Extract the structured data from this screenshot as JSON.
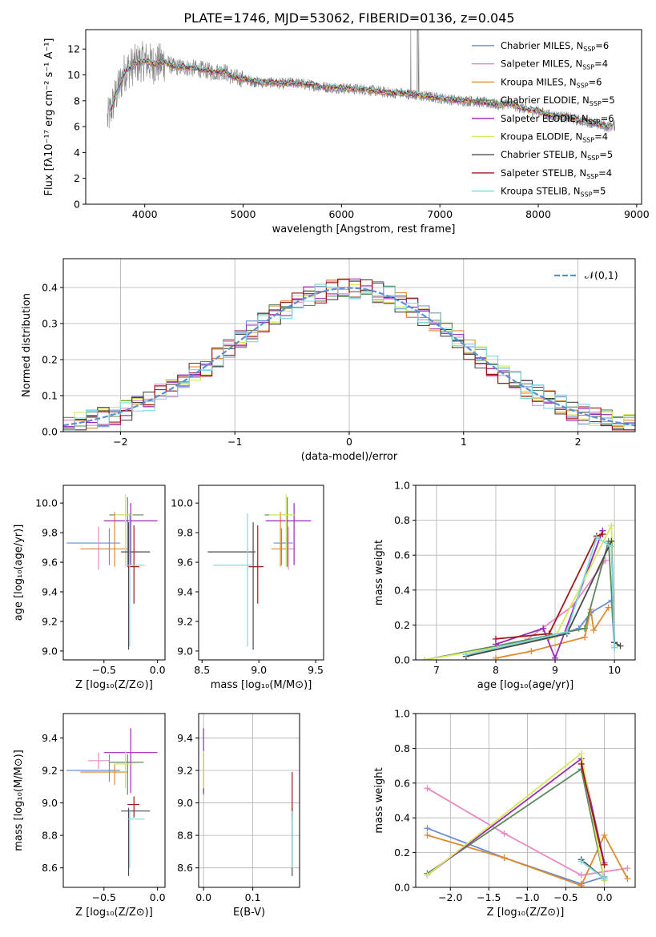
{
  "chart_data": [
    {
      "type": "line",
      "title": "PLATE=1746, MJD=53062, FIBERID=0136, z=0.045",
      "xlabel": "wavelength [Angstrom, rest frame]",
      "ylabel": "Flux [fλ10⁻¹⁷ erg cm⁻² s⁻¹ A⁻¹]",
      "xlim": [
        3400,
        9050
      ],
      "ylim": [
        0,
        13.5
      ],
      "xticks": [
        4000,
        5000,
        6000,
        7000,
        8000,
        9000
      ],
      "yticks": [
        0,
        2,
        4,
        6,
        8,
        10,
        12
      ],
      "grid": false,
      "legend_position": "top-right",
      "data_spectrum": {
        "x": [
          3620,
          3700,
          3800,
          3900,
          4000,
          4100,
          4200,
          4300,
          4400,
          4500,
          4600,
          4700,
          4800,
          4900,
          5000,
          5100,
          5200,
          5300,
          5400,
          5500,
          5600,
          5700,
          5800,
          5900,
          6000,
          6100,
          6200,
          6300,
          6400,
          6500,
          6600,
          6700,
          6800,
          6900,
          7000,
          7100,
          7200,
          7300,
          7400,
          7500,
          7600,
          7700,
          7800,
          7900,
          8000,
          8100,
          8200,
          8300,
          8400,
          8500,
          8600,
          8700,
          8780
        ],
        "y": [
          6.5,
          8.3,
          10.3,
          10.8,
          11.1,
          10.8,
          11.0,
          10.6,
          10.6,
          10.5,
          10.4,
          10.2,
          10.3,
          9.8,
          9.7,
          9.5,
          9.4,
          9.4,
          9.3,
          9.4,
          9.3,
          9.2,
          9.1,
          9.0,
          9.0,
          8.9,
          8.9,
          8.8,
          8.7,
          8.6,
          8.6,
          8.5,
          8.4,
          8.3,
          8.2,
          8.1,
          8.0,
          8.0,
          7.9,
          7.8,
          7.7,
          7.8,
          7.5,
          7.3,
          7.2,
          6.9,
          6.8,
          6.7,
          6.5,
          6.4,
          6.2,
          6.0,
          6.1
        ]
      },
      "series": [
        {
          "name": "Chabrier MILES, N_SSP=6",
          "name_display": "Chabrier MILES, N",
          "name_sub": "SSP",
          "name_tail": "=6",
          "color": "#6a8fd0"
        },
        {
          "name": "Salpeter MILES, N_SSP=4",
          "name_display": "Salpeter MILES, N",
          "name_sub": "SSP",
          "name_tail": "=4",
          "color": "#e78ac3"
        },
        {
          "name": "Kroupa MILES, N_SSP=6",
          "name_display": "Kroupa MILES, N",
          "name_sub": "SSP",
          "name_tail": "=6",
          "color": "#e08a2e"
        },
        {
          "name": "Chabrier ELODIE, N_SSP=5",
          "name_display": "Chabrier ELODIE, N",
          "name_sub": "SSP",
          "name_tail": "=5",
          "color": "#5d8a5d"
        },
        {
          "name": "Salpeter ELODIE, N_SSP=6",
          "name_display": "Salpeter ELODIE, N",
          "name_sub": "SSP",
          "name_tail": "=6",
          "color": "#9a2ab5"
        },
        {
          "name": "Kroupa ELODIE, N_SSP=4",
          "name_display": "Kroupa ELODIE, N",
          "name_sub": "SSP",
          "name_tail": "=4",
          "color": "#d7e85a"
        },
        {
          "name": "Chabrier STELIB, N_SSP=5",
          "name_display": "Chabrier STELIB, N",
          "name_sub": "SSP",
          "name_tail": "=5",
          "color": "#4a4a4a"
        },
        {
          "name": "Salpeter STELIB, N_SSP=4",
          "name_display": "Salpeter STELIB, N",
          "name_sub": "SSP",
          "name_tail": "=4",
          "color": "#a01818"
        },
        {
          "name": "Kroupa STELIB, N_SSP=5",
          "name_display": "Kroupa STELIB, N",
          "name_sub": "SSP",
          "name_tail": "=5",
          "color": "#7fd8e0"
        }
      ]
    },
    {
      "type": "line",
      "xlabel": "(data-model)/error",
      "ylabel": "Normed distribution",
      "xlim": [
        -2.5,
        2.5
      ],
      "ylim": [
        0,
        0.48
      ],
      "xticks": [
        -2,
        -1,
        0,
        1,
        2
      ],
      "yticks": [
        0.0,
        0.1,
        0.2,
        0.3,
        0.4
      ],
      "grid": true,
      "legend_position": "top-right",
      "reference_curve": {
        "name": "𝒩(0,1)",
        "color": "#5b8fd6",
        "style": "dashed"
      },
      "histogram_bin_width": 0.1,
      "histogram_x_range": [
        -2.5,
        2.5
      ]
    },
    {
      "type": "scatter",
      "xlabel": "Z [log₁₀(Z/Z⊙)]",
      "ylabel": "age  [log₁₀(age/yr)]",
      "xlim": [
        -0.88,
        0.07
      ],
      "ylim": [
        8.94,
        10.12
      ],
      "xticks": [
        -0.5,
        0.0
      ],
      "xticklabels": [
        "−0.5",
        "0.0"
      ],
      "yticks": [
        9.0,
        9.2,
        9.4,
        9.6,
        9.8,
        10.0
      ],
      "points": [
        {
          "x": -0.45,
          "y": 9.73,
          "xerr": [
            0.4,
            0.1
          ],
          "yerr": [
            0.15,
            0.1
          ],
          "color": "#6a8fd0"
        },
        {
          "x": -0.55,
          "y": 9.69,
          "xerr": [
            0.1,
            0.1
          ],
          "yerr": [
            0.14,
            0.15
          ],
          "color": "#e78ac3"
        },
        {
          "x": -0.4,
          "y": 9.69,
          "xerr": [
            0.32,
            0.12
          ],
          "yerr": [
            0.12,
            0.25
          ],
          "color": "#e08a2e"
        },
        {
          "x": -0.28,
          "y": 9.92,
          "xerr": [
            0.17,
            0.15
          ],
          "yerr": [
            0.35,
            0.12
          ],
          "color": "#5d8a5d"
        },
        {
          "x": -0.25,
          "y": 9.88,
          "xerr": [
            0.25,
            0.25
          ],
          "yerr": [
            0.3,
            0.12
          ],
          "color": "#9a2ab5"
        },
        {
          "x": -0.3,
          "y": 9.92,
          "xerr": [
            0.1,
            0.07
          ],
          "yerr": [
            0.35,
            0.14
          ],
          "color": "#d7e85a"
        },
        {
          "x": -0.27,
          "y": 9.67,
          "xerr": [
            0.07,
            0.2
          ],
          "yerr": [
            0.66,
            0.2
          ],
          "color": "#4a4a4a"
        },
        {
          "x": -0.22,
          "y": 9.57,
          "xerr": [
            0.06,
            0.05
          ],
          "yerr": [
            0.25,
            0.28
          ],
          "color": "#a01818"
        },
        {
          "x": -0.26,
          "y": 9.58,
          "xerr": [
            0.02,
            0.14
          ],
          "yerr": [
            0.55,
            0.35
          ],
          "color": "#7fd8e0"
        }
      ]
    },
    {
      "type": "scatter",
      "xlabel": "mass [log₁₀(M/M⊙)]",
      "xlim": [
        8.47,
        9.57
      ],
      "ylim": [
        8.94,
        10.12
      ],
      "xticks": [
        8.5,
        9.0,
        9.5
      ],
      "yticks": [
        9.0,
        9.2,
        9.4,
        9.6,
        9.8,
        10.0
      ],
      "points": [
        {
          "x": 9.2,
          "y": 9.73,
          "xerr": [
            0.07,
            0.1
          ],
          "yerr": [
            0.15,
            0.1
          ],
          "color": "#6a8fd0"
        },
        {
          "x": 9.26,
          "y": 9.69,
          "xerr": [
            0.05,
            0.05
          ],
          "yerr": [
            0.14,
            0.15
          ],
          "color": "#e78ac3"
        },
        {
          "x": 9.19,
          "y": 9.69,
          "xerr": [
            0.08,
            0.05
          ],
          "yerr": [
            0.12,
            0.25
          ],
          "color": "#e08a2e"
        },
        {
          "x": 9.25,
          "y": 9.92,
          "xerr": [
            0.2,
            0.05
          ],
          "yerr": [
            0.35,
            0.12
          ],
          "color": "#5d8a5d"
        },
        {
          "x": 9.31,
          "y": 9.88,
          "xerr": [
            0.25,
            0.15
          ],
          "yerr": [
            0.3,
            0.12
          ],
          "color": "#9a2ab5"
        },
        {
          "x": 9.24,
          "y": 9.92,
          "xerr": [
            0.15,
            0.08
          ],
          "yerr": [
            0.35,
            0.14
          ],
          "color": "#d7e85a"
        },
        {
          "x": 8.95,
          "y": 9.67,
          "xerr": [
            0.4,
            0.02
          ],
          "yerr": [
            0.66,
            0.2
          ],
          "color": "#4a4a4a"
        },
        {
          "x": 8.99,
          "y": 9.57,
          "xerr": [
            0.08,
            0.05
          ],
          "yerr": [
            0.25,
            0.28
          ],
          "color": "#a01818"
        },
        {
          "x": 8.9,
          "y": 9.58,
          "xerr": [
            0.3,
            0.05
          ],
          "yerr": [
            0.55,
            0.35
          ],
          "color": "#7fd8e0"
        }
      ]
    },
    {
      "type": "line",
      "xlabel": "age  [log₁₀(age/yr)]",
      "ylabel": "mass weight",
      "xlim": [
        6.65,
        10.35
      ],
      "ylim": [
        0,
        1.0
      ],
      "xticks": [
        7,
        8,
        9,
        10
      ],
      "yticks": [
        0.0,
        0.2,
        0.4,
        0.6,
        0.8,
        1.0
      ],
      "grid": true,
      "series": [
        {
          "color": "#6a8fd0",
          "x": [
            7.5,
            8.9,
            9.4,
            9.6,
            9.95,
            10.0
          ],
          "y": [
            0.02,
            0.13,
            0.18,
            0.27,
            0.34,
            0.07
          ]
        },
        {
          "color": "#e78ac3",
          "x": [
            7.5,
            8.5,
            9.3,
            9.85
          ],
          "y": [
            0.02,
            0.11,
            0.31,
            0.57
          ]
        },
        {
          "color": "#e08a2e",
          "x": [
            8.0,
            8.6,
            9.5,
            9.6,
            9.65,
            9.9
          ],
          "y": [
            0.01,
            0.05,
            0.13,
            0.29,
            0.17,
            0.3
          ]
        },
        {
          "color": "#5d8a5d",
          "x": [
            6.8,
            9.5,
            9.9,
            10.0
          ],
          "y": [
            0.0,
            0.18,
            0.68,
            0.1
          ]
        },
        {
          "color": "#9a2ab5",
          "x": [
            8.0,
            8.8,
            9.0,
            9.8
          ],
          "y": [
            0.09,
            0.18,
            0.01,
            0.74
          ]
        },
        {
          "color": "#d7e85a",
          "x": [
            6.8,
            9.0,
            9.95,
            10.0
          ],
          "y": [
            0.0,
            0.13,
            0.77,
            0.08
          ]
        },
        {
          "color": "#4a4a4a",
          "x": [
            7.5,
            9.2,
            9.95,
            10.0,
            10.1
          ],
          "y": [
            0.02,
            0.15,
            0.68,
            0.1,
            0.08
          ]
        },
        {
          "color": "#a01818",
          "x": [
            8.0,
            8.9,
            9.7,
            9.8
          ],
          "y": [
            0.12,
            0.15,
            0.71,
            0.72
          ]
        },
        {
          "color": "#7fd8e0",
          "x": [
            7.5,
            9.2,
            9.7,
            9.95,
            10.0
          ],
          "y": [
            0.03,
            0.16,
            0.7,
            0.65,
            0.07
          ]
        }
      ]
    },
    {
      "type": "scatter",
      "xlabel": "Z [log₁₀(Z/Z⊙)]",
      "ylabel": "mass [log₁₀(M/M⊙)]",
      "xlim": [
        -0.88,
        0.07
      ],
      "ylim": [
        8.48,
        9.55
      ],
      "xticks": [
        -0.5,
        0.0
      ],
      "xticklabels": [
        "−0.5",
        "0.0"
      ],
      "yticks": [
        8.6,
        8.8,
        9.0,
        9.2,
        9.4
      ],
      "points": [
        {
          "x": -0.45,
          "y": 9.2,
          "xerr": [
            0.4,
            0.1
          ],
          "yerr": [
            0.07,
            0.1
          ],
          "color": "#6a8fd0"
        },
        {
          "x": -0.55,
          "y": 9.26,
          "xerr": [
            0.1,
            0.1
          ],
          "yerr": [
            0.05,
            0.05
          ],
          "color": "#e78ac3"
        },
        {
          "x": -0.4,
          "y": 9.19,
          "xerr": [
            0.32,
            0.12
          ],
          "yerr": [
            0.08,
            0.05
          ],
          "color": "#e08a2e"
        },
        {
          "x": -0.28,
          "y": 9.25,
          "xerr": [
            0.17,
            0.15
          ],
          "yerr": [
            0.2,
            0.05
          ],
          "color": "#5d8a5d"
        },
        {
          "x": -0.25,
          "y": 9.31,
          "xerr": [
            0.25,
            0.25
          ],
          "yerr": [
            0.25,
            0.15
          ],
          "color": "#9a2ab5"
        },
        {
          "x": -0.3,
          "y": 9.24,
          "xerr": [
            0.1,
            0.07
          ],
          "yerr": [
            0.15,
            0.08
          ],
          "color": "#d7e85a"
        },
        {
          "x": -0.27,
          "y": 8.95,
          "xerr": [
            0.07,
            0.2
          ],
          "yerr": [
            0.4,
            0.02
          ],
          "color": "#4a4a4a"
        },
        {
          "x": -0.22,
          "y": 8.99,
          "xerr": [
            0.06,
            0.05
          ],
          "yerr": [
            0.08,
            0.05
          ],
          "color": "#a01818"
        },
        {
          "x": -0.26,
          "y": 8.9,
          "xerr": [
            0.02,
            0.14
          ],
          "yerr": [
            0.3,
            0.05
          ],
          "color": "#7fd8e0"
        }
      ]
    },
    {
      "type": "scatter",
      "xlabel": "E(B-V)",
      "xlim": [
        -0.01,
        0.195
      ],
      "ylim": [
        8.48,
        9.55
      ],
      "xticks": [
        0.0,
        0.1
      ],
      "yticks": [
        8.6,
        8.8,
        9.0,
        9.2,
        9.4
      ],
      "points": [
        {
          "x": 0.0,
          "y": 9.2,
          "yerr": [
            0.07,
            0.1
          ],
          "color": "#6a8fd0"
        },
        {
          "x": 0.0,
          "y": 9.26,
          "yerr": [
            0.05,
            0.05
          ],
          "color": "#e78ac3"
        },
        {
          "x": 0.0,
          "y": 9.19,
          "yerr": [
            0.08,
            0.05
          ],
          "color": "#e08a2e"
        },
        {
          "x": 0.0,
          "y": 9.25,
          "yerr": [
            0.2,
            0.05
          ],
          "color": "#5d8a5d"
        },
        {
          "x": 0.0,
          "y": 9.31,
          "yerr": [
            0.25,
            0.15
          ],
          "color": "#9a2ab5"
        },
        {
          "x": 0.0,
          "y": 9.24,
          "yerr": [
            0.15,
            0.08
          ],
          "color": "#d7e85a"
        },
        {
          "x": 0.18,
          "y": 8.95,
          "yerr": [
            0.4,
            0.02
          ],
          "color": "#4a4a4a"
        },
        {
          "x": 0.18,
          "y": 8.99,
          "yerr": [
            0.08,
            0.2
          ],
          "color": "#a01818"
        },
        {
          "x": 0.18,
          "y": 8.9,
          "yerr": [
            0.3,
            0.05
          ],
          "color": "#7fd8e0"
        }
      ]
    },
    {
      "type": "line",
      "xlabel": "Z [log₁₀(Z/Z⊙)]",
      "ylabel": "mass weight",
      "xlim": [
        -2.45,
        0.4
      ],
      "ylim": [
        0,
        1.0
      ],
      "xticks": [
        -2.0,
        -1.5,
        -1.0,
        -0.5,
        0.0
      ],
      "xticklabels": [
        "−2.0",
        "−1.5",
        "−1.0",
        "−0.5",
        "0.0"
      ],
      "yticks": [
        0.0,
        0.2,
        0.4,
        0.6,
        0.8,
        1.0
      ],
      "grid": true,
      "series": [
        {
          "color": "#6a8fd0",
          "x": [
            -2.3,
            -1.3,
            -0.3,
            0.0
          ],
          "y": [
            0.34,
            0.17,
            0.02,
            0.06
          ]
        },
        {
          "color": "#e78ac3",
          "x": [
            -2.3,
            -1.3,
            -0.3,
            0.3
          ],
          "y": [
            0.57,
            0.31,
            0.07,
            0.11
          ]
        },
        {
          "color": "#e08a2e",
          "x": [
            -2.3,
            -1.3,
            -0.3,
            0.0,
            0.3
          ],
          "y": [
            0.3,
            0.17,
            0.01,
            0.3,
            0.05
          ]
        },
        {
          "color": "#5d8a5d",
          "x": [
            -2.3,
            -0.3,
            0.0
          ],
          "y": [
            0.08,
            0.68,
            0.04
          ]
        },
        {
          "color": "#9a2ab5",
          "x": [
            -2.3,
            -0.3,
            0.0
          ],
          "y": [
            0.07,
            0.74,
            0.14
          ]
        },
        {
          "color": "#d7e85a",
          "x": [
            -2.3,
            -0.3,
            0.0
          ],
          "y": [
            0.07,
            0.77,
            0.04
          ]
        },
        {
          "color": "#4a4a4a",
          "x": [
            -0.3,
            0.0
          ],
          "y": [
            0.16,
            0.05
          ]
        },
        {
          "color": "#a01818",
          "x": [
            -0.3,
            0.0
          ],
          "y": [
            0.71,
            0.13
          ]
        },
        {
          "color": "#7fd8e0",
          "x": [
            -0.3,
            0.0
          ],
          "y": [
            0.15,
            0.05
          ]
        }
      ]
    }
  ]
}
